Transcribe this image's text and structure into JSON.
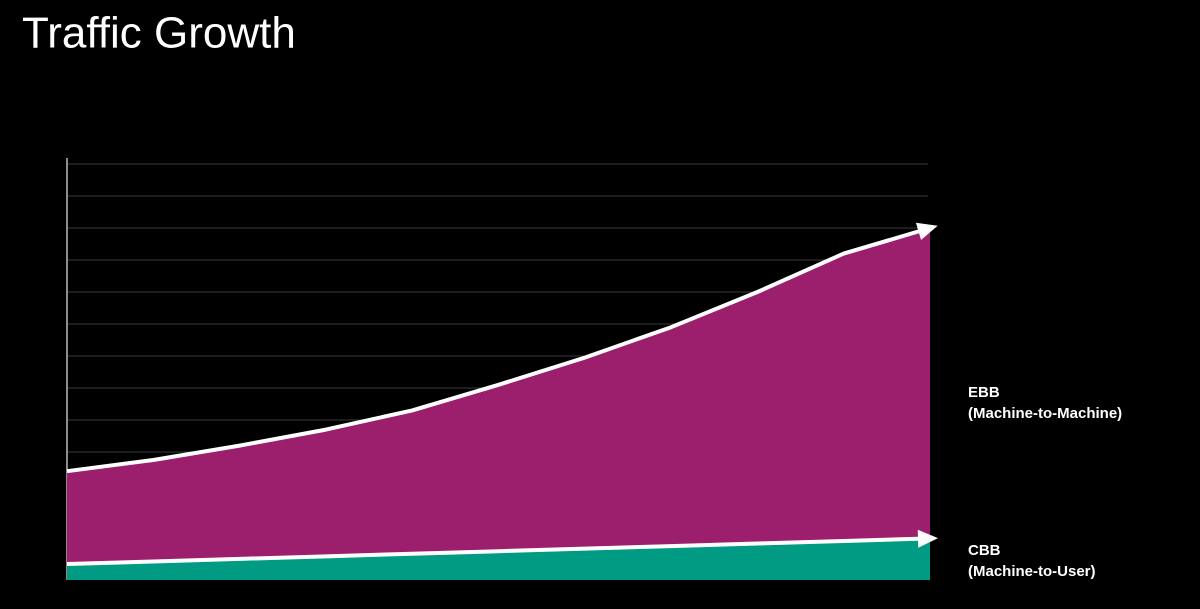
{
  "chart_data": {
    "type": "stacked_area",
    "title": "Traffic Growth",
    "x": [
      0,
      1,
      2,
      3,
      4,
      5,
      6,
      7,
      8,
      9,
      10
    ],
    "xlim": [
      0,
      10
    ],
    "ylim": [
      0,
      13
    ],
    "yticks": [
      1,
      2,
      3,
      4,
      5,
      6,
      7,
      8,
      9,
      10,
      11,
      12,
      13
    ],
    "grid": true,
    "series": [
      {
        "name": "CBB",
        "description": "(Machine-to-User)",
        "color": "#009b82",
        "values": [
          0.5,
          0.58,
          0.66,
          0.74,
          0.82,
          0.9,
          0.98,
          1.06,
          1.14,
          1.22,
          1.3
        ]
      },
      {
        "name": "EBB",
        "description": "(Machine-to-Machine)",
        "color": "#9c1f6e",
        "values": [
          2.9,
          3.17,
          3.54,
          3.96,
          4.48,
          5.2,
          5.97,
          6.84,
          7.86,
          8.98,
          9.7
        ]
      }
    ]
  }
}
